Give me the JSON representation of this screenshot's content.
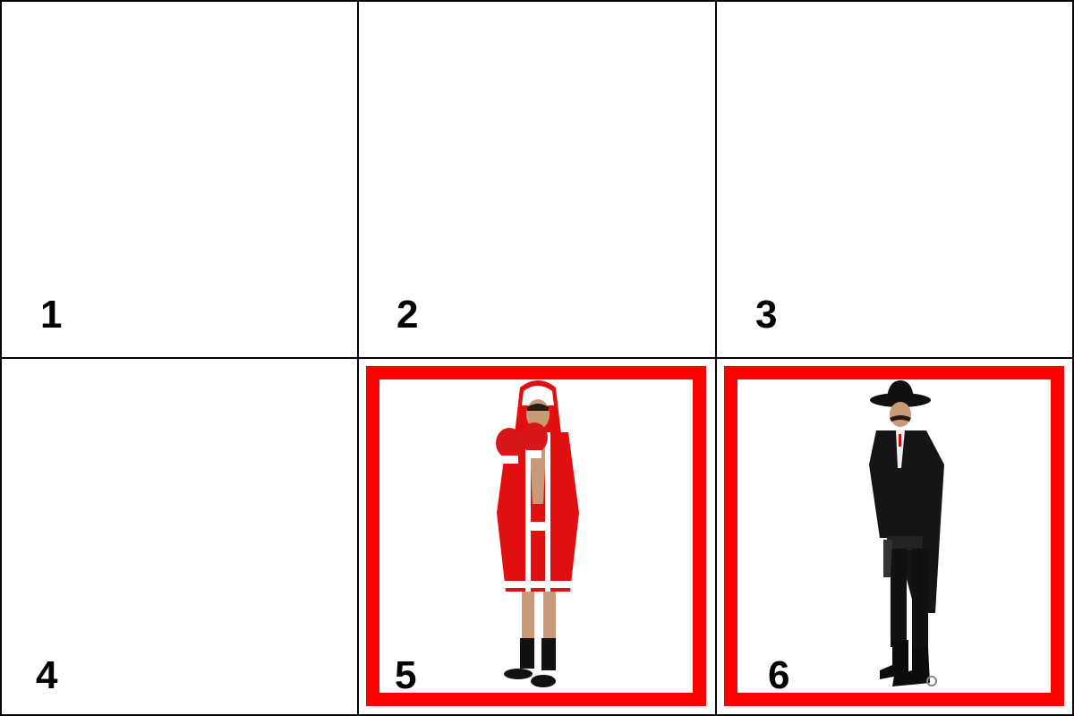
{
  "colors": {
    "selection": "#ff0000",
    "grid_line": "#000000",
    "background": "#ffffff"
  },
  "tiles": [
    {
      "label": "1",
      "selected": false,
      "content": ""
    },
    {
      "label": "2",
      "selected": false,
      "content": ""
    },
    {
      "label": "3",
      "selected": false,
      "content": ""
    },
    {
      "label": "4",
      "selected": false,
      "content": ""
    },
    {
      "label": "5",
      "selected": true,
      "content": "boxer-costume-image"
    },
    {
      "label": "6",
      "selected": true,
      "content": "sheriff-costume-image"
    }
  ]
}
